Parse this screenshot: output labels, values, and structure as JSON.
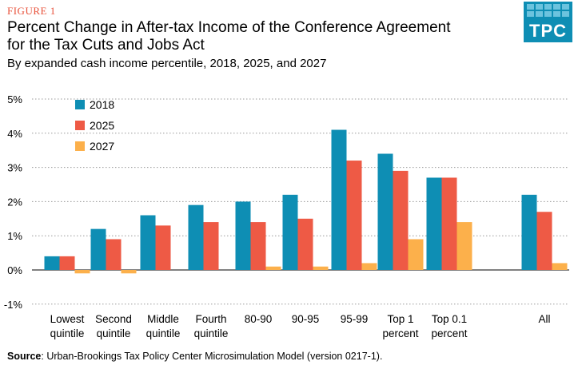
{
  "figure_label": "FIGURE 1",
  "logo_text": "TPC",
  "source_label": "Source",
  "source_text": ": Urban-Brookings Tax Policy Center Microsimulation Model (version 0217-1).",
  "chart_data": {
    "type": "bar",
    "title": "Percent Change in After-tax Income of the Conference Agreement for the Tax Cuts and Jobs Act",
    "subtitle": "By expanded cash income percentile, 2018, 2025, and 2027",
    "xlabel": "",
    "ylabel": "",
    "ylim": [
      -1,
      5
    ],
    "yticks": [
      -1,
      0,
      1,
      2,
      3,
      4,
      5
    ],
    "ytick_labels": [
      "-1%",
      "0%",
      "1%",
      "2%",
      "3%",
      "4%",
      "5%"
    ],
    "categories": [
      [
        "Lowest",
        "quintile"
      ],
      [
        "Second",
        "quintile"
      ],
      [
        "Middle",
        "quintile"
      ],
      [
        "Fourth",
        "quintile"
      ],
      [
        "80-90"
      ],
      [
        "90-95"
      ],
      [
        "95-99"
      ],
      [
        "Top 1",
        "percent"
      ],
      [
        "Top 0.1",
        "percent"
      ],
      [
        "All"
      ]
    ],
    "series": [
      {
        "name": "2018",
        "color": "#0e8eb4",
        "values": [
          0.4,
          1.2,
          1.6,
          1.9,
          2.0,
          2.2,
          4.1,
          3.4,
          2.7,
          2.2
        ]
      },
      {
        "name": "2025",
        "color": "#ee5a45",
        "values": [
          0.4,
          0.9,
          1.3,
          1.4,
          1.4,
          1.5,
          3.2,
          2.9,
          2.7,
          1.7
        ]
      },
      {
        "name": "2027",
        "color": "#fcb04b",
        "values": [
          -0.1,
          -0.1,
          0.0,
          0.0,
          0.1,
          0.1,
          0.2,
          0.9,
          1.4,
          0.2
        ]
      }
    ],
    "legend_position": "top-left"
  }
}
